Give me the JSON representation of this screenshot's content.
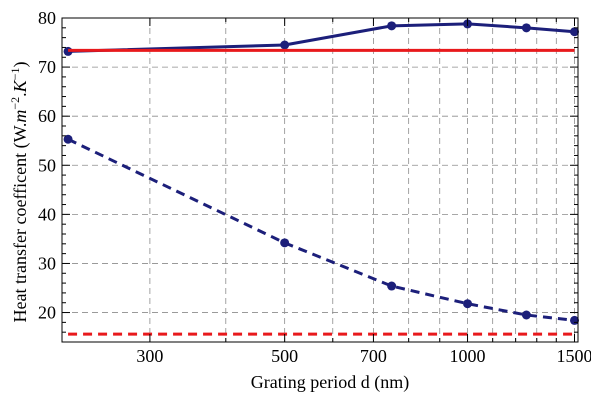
{
  "chart_data": {
    "type": "line",
    "xlabel": "Grating period d (nm)",
    "ylabel_main": "Heat transfer coefficent (W.",
    "ylabel_m": "m",
    "ylabel_exp_m": "−2",
    "ylabel_sep": ".",
    "ylabel_K": "K",
    "ylabel_exp_K": "−1",
    "ylabel_close": ")",
    "x_scale": "log",
    "xlim": [
      215,
      1520
    ],
    "ylim": [
      14,
      80
    ],
    "x_ticks": [
      300,
      500,
      700,
      1000,
      1500
    ],
    "x_tick_labels": [
      "300",
      "500",
      "700",
      "1000",
      "1500"
    ],
    "x_minor_ticks": [
      400,
      600,
      800,
      900,
      1100,
      1200,
      1300,
      1400
    ],
    "y_ticks": [
      20,
      30,
      40,
      50,
      60,
      70,
      80
    ],
    "y_tick_labels": [
      "20",
      "30",
      "40",
      "50",
      "60",
      "70",
      "80"
    ],
    "grid": true,
    "series": [
      {
        "style": "solid-with-markers",
        "color": "#1c1f7a",
        "x": [
          220,
          500,
          750,
          1000,
          1250,
          1500
        ],
        "y": [
          73.2,
          74.5,
          78.4,
          78.8,
          78.0,
          77.2
        ]
      },
      {
        "style": "dashed-with-markers",
        "color": "#1c1f7a",
        "x": [
          220,
          500,
          750,
          1000,
          1250,
          1500
        ],
        "y": [
          55.3,
          34.2,
          25.4,
          21.8,
          19.5,
          18.4
        ]
      },
      {
        "style": "solid",
        "color": "#e8191c",
        "x": [
          220,
          1500
        ],
        "y": [
          73.4,
          73.4
        ]
      },
      {
        "style": "dashed",
        "color": "#e8191c",
        "x": [
          220,
          1500
        ],
        "y": [
          15.6,
          15.6
        ]
      }
    ]
  }
}
